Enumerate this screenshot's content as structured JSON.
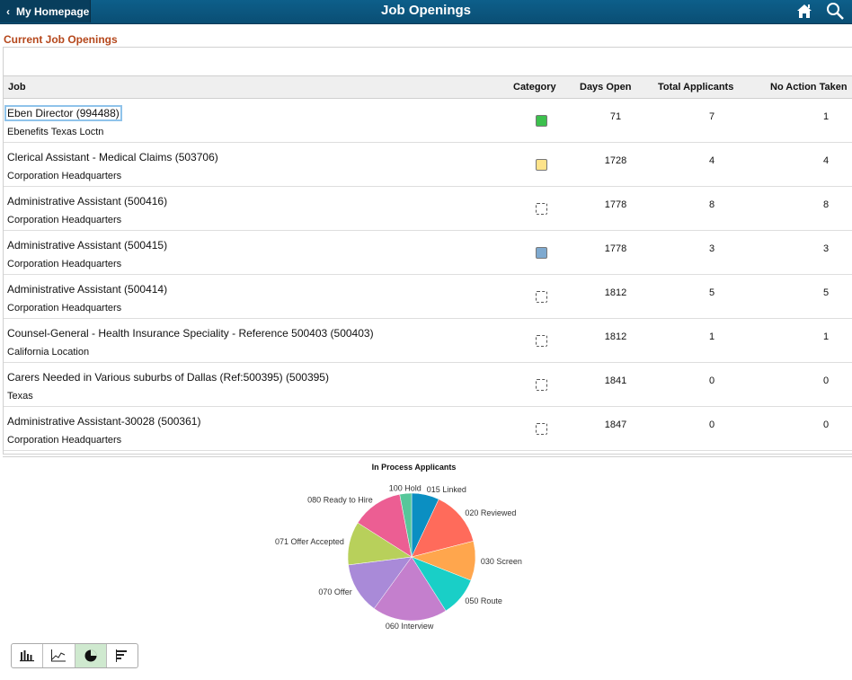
{
  "header": {
    "back_label": "My Homepage",
    "title": "Job Openings"
  },
  "section_title": "Current Job Openings",
  "columns": {
    "job": "Job",
    "category": "Category",
    "days_open": "Days Open",
    "total_applicants": "Total Applicants",
    "no_action": "No Action Taken"
  },
  "rows": [
    {
      "title": "Eben Director (994488)",
      "location": "Ebenefits Texas Loctn",
      "category": "green",
      "days_open": "71",
      "total": "7",
      "no_action": "1"
    },
    {
      "title": "Clerical Assistant - Medical Claims (503706)",
      "location": "Corporation Headquarters",
      "category": "yellow",
      "days_open": "1728",
      "total": "4",
      "no_action": "4"
    },
    {
      "title": "Administrative Assistant (500416)",
      "location": "Corporation Headquarters",
      "category": "none",
      "days_open": "1778",
      "total": "8",
      "no_action": "8"
    },
    {
      "title": "Administrative Assistant (500415)",
      "location": "Corporation Headquarters",
      "category": "blue",
      "days_open": "1778",
      "total": "3",
      "no_action": "3"
    },
    {
      "title": "Administrative Assistant (500414)",
      "location": "Corporation Headquarters",
      "category": "none",
      "days_open": "1812",
      "total": "5",
      "no_action": "5"
    },
    {
      "title": "Counsel-General - Health Insurance Speciality - Reference 500403 (500403)",
      "location": "California Location",
      "category": "none",
      "days_open": "1812",
      "total": "1",
      "no_action": "1"
    },
    {
      "title": "Carers Needed in Various suburbs of Dallas (Ref:500395) (500395)",
      "location": "Texas",
      "category": "none",
      "days_open": "1841",
      "total": "0",
      "no_action": "0"
    },
    {
      "title": "Administrative Assistant-30028 (500361)",
      "location": "Corporation Headquarters",
      "category": "none",
      "days_open": "1847",
      "total": "0",
      "no_action": "0"
    }
  ],
  "category_colors": {
    "green": "#3cc04d",
    "yellow": "#fde38a",
    "blue": "#7ea9cf"
  },
  "chart_data": {
    "type": "pie",
    "title": "In Process Applicants",
    "slices": [
      {
        "label": "015 Linked",
        "value": 7,
        "color": "#0b8fc2"
      },
      {
        "label": "020 Reviewed",
        "value": 14,
        "color": "#ff6b5b"
      },
      {
        "label": "030 Screen",
        "value": 10,
        "color": "#ffa64d"
      },
      {
        "label": "050 Route",
        "value": 10,
        "color": "#19cfc7"
      },
      {
        "label": "060 Interview",
        "value": 19,
        "color": "#c47fcd"
      },
      {
        "label": "070 Offer",
        "value": 13,
        "color": "#a98ad8"
      },
      {
        "label": "071 Offer Accepted",
        "value": 11,
        "color": "#b8d05b"
      },
      {
        "label": "080 Ready to Hire",
        "value": 13,
        "color": "#ec5e93"
      },
      {
        "label": "100 Hold",
        "value": 3,
        "color": "#56c79a"
      }
    ]
  },
  "chart_toolbar": {
    "buttons": [
      "bar-chart",
      "line-chart",
      "pie-chart",
      "horizontal-bar-chart"
    ],
    "active": "pie-chart"
  }
}
